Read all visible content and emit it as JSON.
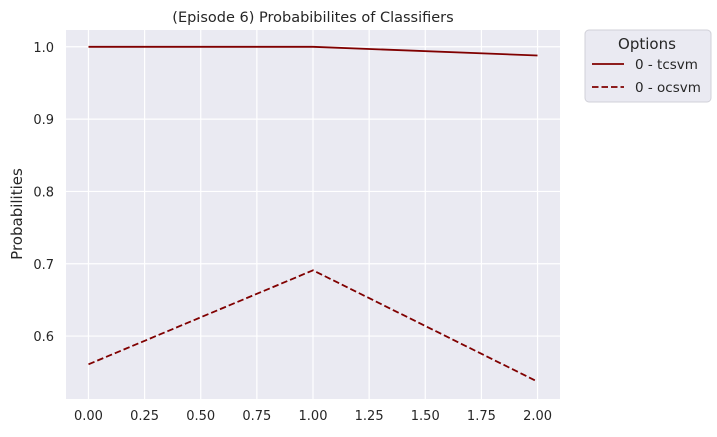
{
  "chart_data": {
    "type": "line",
    "title": "(Episode 6) Probabibilites of Classifiers",
    "xlabel": "",
    "ylabel": "Probabilities",
    "x": [
      0,
      1,
      2
    ],
    "xlim": [
      -0.1,
      2.1
    ],
    "ylim": [
      0.513,
      1.0232
    ],
    "xticks": [
      0.0,
      0.25,
      0.5,
      0.75,
      1.0,
      1.25,
      1.5,
      1.75,
      2.0
    ],
    "xtick_labels": [
      "0.00",
      "0.25",
      "0.50",
      "0.75",
      "1.00",
      "1.25",
      "1.50",
      "1.75",
      "2.00"
    ],
    "yticks": [
      0.6,
      0.7,
      0.8,
      0.9,
      1.0
    ],
    "ytick_labels": [
      "0.6",
      "0.7",
      "0.8",
      "0.9",
      "1.0"
    ],
    "grid": true,
    "background_color": "#eaeaf2",
    "legend": {
      "title": "Options",
      "placement": "outside-top-right",
      "entries": [
        "0 - tcsvm",
        "0 - ocsvm"
      ]
    },
    "series": [
      {
        "name": "0 - tcsvm",
        "values": [
          1.0,
          1.0,
          0.988
        ],
        "color": "#800000",
        "dash": "solid"
      },
      {
        "name": "0 - ocsvm",
        "values": [
          0.561,
          0.691,
          0.537
        ],
        "color": "#800000",
        "dash": "dashed"
      }
    ]
  }
}
